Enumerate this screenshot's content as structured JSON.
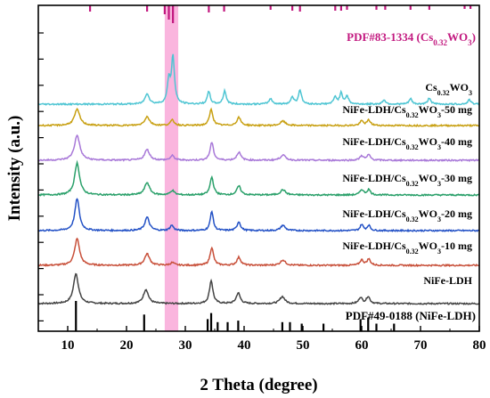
{
  "chart_data": {
    "type": "line",
    "xlabel": "2 Theta (degree)",
    "ylabel": "Intensity (a.u.)",
    "xlim": [
      5,
      80
    ],
    "x_ticks": [
      10,
      20,
      30,
      40,
      50,
      60,
      70,
      80
    ],
    "y_tick_labels_shown": false,
    "legend": "inline labels on right",
    "highlight_band": {
      "x_range": [
        26.5,
        28.8
      ],
      "color": "#f9a8d8"
    },
    "references": [
      {
        "label": "PDF#83-1334 (Cs0.32WO3)",
        "label_parts": {
          "base": "PDF#83-1334 (Cs",
          "sub": "0.32",
          "tail": "WO",
          "sub2": "3",
          "end": ")"
        },
        "color": "#c2187f",
        "position": "top",
        "peaks": [
          {
            "x": 13.8,
            "h": 0.35
          },
          {
            "x": 23.5,
            "h": 0.35
          },
          {
            "x": 26.5,
            "h": 0.5
          },
          {
            "x": 27.2,
            "h": 0.8
          },
          {
            "x": 27.9,
            "h": 1.0
          },
          {
            "x": 34.0,
            "h": 0.4
          },
          {
            "x": 36.6,
            "h": 0.35
          },
          {
            "x": 44.5,
            "h": 0.25
          },
          {
            "x": 48.2,
            "h": 0.3
          },
          {
            "x": 49.5,
            "h": 0.35
          },
          {
            "x": 55.5,
            "h": 0.3
          },
          {
            "x": 56.5,
            "h": 0.3
          },
          {
            "x": 57.5,
            "h": 0.25
          },
          {
            "x": 62.5,
            "h": 0.25
          },
          {
            "x": 64.0,
            "h": 0.25
          },
          {
            "x": 68.3,
            "h": 0.25
          },
          {
            "x": 71.5,
            "h": 0.25
          },
          {
            "x": 77.5,
            "h": 0.2
          },
          {
            "x": 78.5,
            "h": 0.2
          }
        ]
      },
      {
        "label": "PDF#49-0188 (NiFe-LDH)",
        "label_parts": {
          "base": "PDF#49-0188 (NiFe-LDH)",
          "sub": "",
          "tail": "",
          "sub2": "",
          "end": ""
        },
        "color": "#000000",
        "position": "bottom",
        "peaks": [
          {
            "x": 11.4,
            "h": 1.0
          },
          {
            "x": 23.0,
            "h": 0.55
          },
          {
            "x": 33.8,
            "h": 0.4
          },
          {
            "x": 34.4,
            "h": 0.6
          },
          {
            "x": 35.5,
            "h": 0.3
          },
          {
            "x": 37.2,
            "h": 0.3
          },
          {
            "x": 39.0,
            "h": 0.35
          },
          {
            "x": 46.5,
            "h": 0.3
          },
          {
            "x": 47.8,
            "h": 0.3
          },
          {
            "x": 49.8,
            "h": 0.25
          },
          {
            "x": 53.5,
            "h": 0.25
          },
          {
            "x": 59.8,
            "h": 0.4
          },
          {
            "x": 61.1,
            "h": 0.45
          },
          {
            "x": 62.5,
            "h": 0.25
          },
          {
            "x": 65.5,
            "h": 0.25
          }
        ]
      }
    ],
    "series": [
      {
        "name": "NiFe-LDH",
        "label_parts": {
          "base": "NiFe-LDH",
          "sub": "",
          "tail": ""
        },
        "color": "#444444",
        "offset": 0,
        "peaks": [
          {
            "x": 11.4,
            "h": 34,
            "w": 0.5
          },
          {
            "x": 23.3,
            "h": 16,
            "w": 0.5
          },
          {
            "x": 34.4,
            "h": 26,
            "w": 0.35
          },
          {
            "x": 39.0,
            "h": 12,
            "w": 0.4
          },
          {
            "x": 46.5,
            "h": 8,
            "w": 0.5
          },
          {
            "x": 59.8,
            "h": 7,
            "w": 0.35
          },
          {
            "x": 61.1,
            "h": 8,
            "w": 0.35
          }
        ]
      },
      {
        "name": "NiFe-LDH/Cs0.32WO3-10 mg",
        "label_parts": {
          "base": "NiFe-LDH/Cs",
          "sub": "0.32",
          "tail": "WO3-10 mg"
        },
        "color": "#c8503a",
        "offset": 1,
        "peaks": [
          {
            "x": 11.6,
            "h": 30,
            "w": 0.5
          },
          {
            "x": 23.5,
            "h": 13,
            "w": 0.5
          },
          {
            "x": 27.8,
            "h": 3,
            "w": 0.4
          },
          {
            "x": 34.5,
            "h": 20,
            "w": 0.35
          },
          {
            "x": 39.1,
            "h": 9,
            "w": 0.4
          },
          {
            "x": 46.6,
            "h": 6,
            "w": 0.5
          },
          {
            "x": 60.0,
            "h": 6,
            "w": 0.35
          },
          {
            "x": 61.2,
            "h": 7,
            "w": 0.35
          }
        ]
      },
      {
        "name": "NiFe-LDH/Cs0.32WO3-20 mg",
        "label_parts": {
          "base": "NiFe-LDH/Cs",
          "sub": "0.32",
          "tail": "WO3-20 mg"
        },
        "color": "#2452c6",
        "offset": 2,
        "peaks": [
          {
            "x": 11.6,
            "h": 36,
            "w": 0.45
          },
          {
            "x": 23.5,
            "h": 15,
            "w": 0.45
          },
          {
            "x": 27.7,
            "h": 6,
            "w": 0.35
          },
          {
            "x": 34.5,
            "h": 22,
            "w": 0.3
          },
          {
            "x": 39.1,
            "h": 10,
            "w": 0.35
          },
          {
            "x": 46.6,
            "h": 6,
            "w": 0.45
          },
          {
            "x": 60.0,
            "h": 7,
            "w": 0.3
          },
          {
            "x": 61.2,
            "h": 6,
            "w": 0.3
          }
        ]
      },
      {
        "name": "NiFe-LDH/Cs0.32WO3-30 mg",
        "label_parts": {
          "base": "NiFe-LDH/Cs",
          "sub": "0.32",
          "tail": "WO3-30 mg"
        },
        "color": "#2aa06a",
        "offset": 3,
        "peaks": [
          {
            "x": 11.6,
            "h": 36,
            "w": 0.5
          },
          {
            "x": 23.5,
            "h": 14,
            "w": 0.5
          },
          {
            "x": 27.8,
            "h": 5,
            "w": 0.4
          },
          {
            "x": 34.5,
            "h": 20,
            "w": 0.35
          },
          {
            "x": 39.1,
            "h": 10,
            "w": 0.4
          },
          {
            "x": 46.6,
            "h": 6,
            "w": 0.5
          },
          {
            "x": 60.0,
            "h": 6,
            "w": 0.35
          },
          {
            "x": 61.2,
            "h": 6,
            "w": 0.35
          }
        ]
      },
      {
        "name": "NiFe-LDH/Cs0.32WO3-40 mg",
        "label_parts": {
          "base": "NiFe-LDH/Cs",
          "sub": "0.32",
          "tail": "WO3-40 mg"
        },
        "color": "#a878d8",
        "offset": 4,
        "peaks": [
          {
            "x": 11.6,
            "h": 28,
            "w": 0.55
          },
          {
            "x": 23.5,
            "h": 12,
            "w": 0.5
          },
          {
            "x": 27.8,
            "h": 5,
            "w": 0.4
          },
          {
            "x": 34.5,
            "h": 20,
            "w": 0.35
          },
          {
            "x": 39.1,
            "h": 9,
            "w": 0.4
          },
          {
            "x": 46.6,
            "h": 6,
            "w": 0.5
          },
          {
            "x": 60.0,
            "h": 5,
            "w": 0.35
          },
          {
            "x": 61.2,
            "h": 6,
            "w": 0.35
          }
        ]
      },
      {
        "name": "NiFe-LDH/Cs0.32WO3-50 mg",
        "label_parts": {
          "base": "NiFe-LDH/Cs",
          "sub": "0.32",
          "tail": "WO3-50 mg"
        },
        "color": "#c8a012",
        "offset": 5,
        "peaks": [
          {
            "x": 11.6,
            "h": 18,
            "w": 0.55
          },
          {
            "x": 23.5,
            "h": 10,
            "w": 0.5
          },
          {
            "x": 27.8,
            "h": 6,
            "w": 0.4
          },
          {
            "x": 34.4,
            "h": 18,
            "w": 0.35
          },
          {
            "x": 39.1,
            "h": 9,
            "w": 0.4
          },
          {
            "x": 46.6,
            "h": 5,
            "w": 0.5
          },
          {
            "x": 60.0,
            "h": 5,
            "w": 0.35
          },
          {
            "x": 61.2,
            "h": 6,
            "w": 0.35
          }
        ]
      },
      {
        "name": "Cs0.32WO3",
        "label_parts": {
          "base": "Cs",
          "sub": "0.32",
          "tail": "WO3"
        },
        "color": "#4ec5d3",
        "offset": 6,
        "peaks": [
          {
            "x": 23.5,
            "h": 12,
            "w": 0.4
          },
          {
            "x": 27.2,
            "h": 26,
            "w": 0.3
          },
          {
            "x": 27.9,
            "h": 52,
            "w": 0.3
          },
          {
            "x": 34.0,
            "h": 14,
            "w": 0.3
          },
          {
            "x": 36.7,
            "h": 15,
            "w": 0.3
          },
          {
            "x": 44.5,
            "h": 6,
            "w": 0.35
          },
          {
            "x": 48.2,
            "h": 8,
            "w": 0.3
          },
          {
            "x": 49.5,
            "h": 16,
            "w": 0.3
          },
          {
            "x": 55.5,
            "h": 8,
            "w": 0.3
          },
          {
            "x": 56.5,
            "h": 12,
            "w": 0.3
          },
          {
            "x": 57.5,
            "h": 9,
            "w": 0.3
          },
          {
            "x": 63.8,
            "h": 5,
            "w": 0.3
          },
          {
            "x": 68.3,
            "h": 6,
            "w": 0.3
          },
          {
            "x": 71.5,
            "h": 7,
            "w": 0.3
          },
          {
            "x": 78.3,
            "h": 5,
            "w": 0.3
          }
        ]
      }
    ]
  }
}
